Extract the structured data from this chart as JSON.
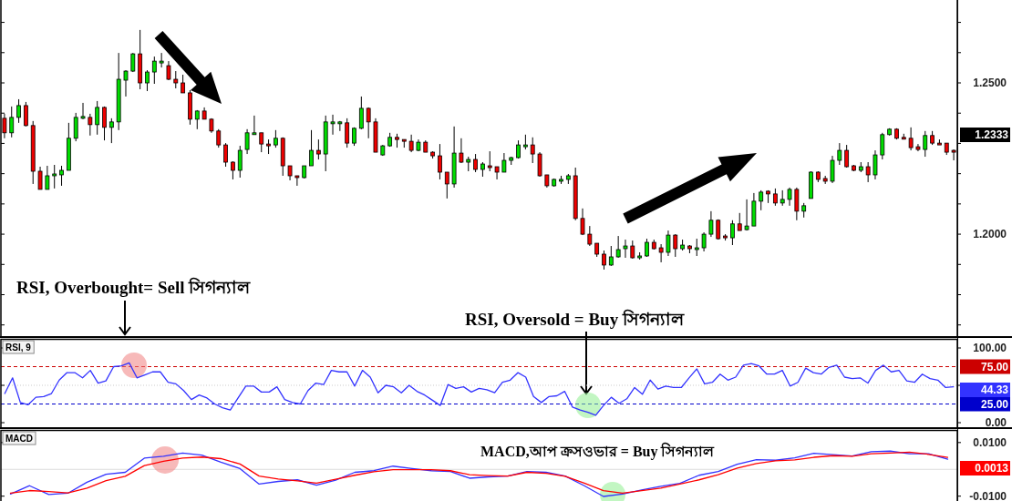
{
  "chart_data": [
    {
      "type": "candlestick",
      "categories": [
        null,
        null,
        null,
        null,
        null,
        null,
        null,
        null,
        null,
        null,
        null,
        null,
        null,
        null,
        null,
        null,
        null,
        null,
        null,
        null,
        null,
        null,
        null,
        null,
        null,
        null,
        null,
        null,
        null,
        null,
        null,
        null,
        null,
        null,
        null,
        null,
        null,
        null,
        null,
        null,
        null,
        null,
        null,
        null,
        null,
        null,
        null,
        null,
        null,
        null,
        null,
        null,
        null,
        null,
        null,
        null,
        null,
        null,
        null,
        null,
        null,
        null,
        null,
        null,
        null,
        null,
        null,
        null,
        null,
        null,
        null,
        null,
        null,
        null,
        null,
        null,
        null,
        null,
        null,
        null,
        null,
        null,
        null,
        null,
        null,
        null,
        null,
        null,
        null,
        null,
        null,
        null,
        null,
        null,
        null,
        null,
        null,
        null,
        null,
        null,
        null,
        null,
        null,
        null,
        null,
        null,
        null,
        null,
        null,
        null,
        null,
        null,
        null,
        null,
        null,
        null,
        null,
        null,
        null,
        null,
        null,
        null,
        null,
        null,
        null,
        null,
        null,
        null,
        null,
        null,
        null,
        null,
        null,
        null
      ],
      "ohlc": [
        [
          1.2383,
          1.2398,
          1.2317,
          1.2335
        ],
        [
          1.2335,
          1.2422,
          1.232,
          1.2386
        ],
        [
          1.2386,
          1.2446,
          1.2368,
          1.2425
        ],
        [
          1.2425,
          1.2437,
          1.2356,
          1.2359
        ],
        [
          1.2359,
          1.2374,
          1.2166,
          1.2208
        ],
        [
          1.2208,
          1.2223,
          1.2148,
          1.2148
        ],
        [
          1.2148,
          1.2226,
          1.2148,
          1.2193
        ],
        [
          1.2193,
          1.2229,
          1.2151,
          1.2199
        ],
        [
          1.2196,
          1.2226,
          1.216,
          1.2211
        ],
        [
          1.2211,
          1.2368,
          1.2211,
          1.2317
        ],
        [
          1.2317,
          1.2401,
          1.2307,
          1.2386
        ],
        [
          1.2383,
          1.2434,
          1.238,
          1.2389
        ],
        [
          1.2386,
          1.2398,
          1.2326,
          1.2362
        ],
        [
          1.2362,
          1.244,
          1.2329,
          1.2419
        ],
        [
          1.2419,
          1.2422,
          1.231,
          1.2353
        ],
        [
          1.2353,
          1.2383,
          1.2301,
          1.2371
        ],
        [
          1.2371,
          1.2599,
          1.2344,
          1.2512
        ],
        [
          1.2509,
          1.2542,
          1.2455,
          1.2539
        ],
        [
          1.2539,
          1.2599,
          1.2536,
          1.2596
        ],
        [
          1.2596,
          1.2675,
          1.2479,
          1.25
        ],
        [
          1.25,
          1.2542,
          1.2473,
          1.2536
        ],
        [
          1.2536,
          1.2587,
          1.2497,
          1.2572
        ],
        [
          1.2569,
          1.2599,
          1.2551,
          1.2572
        ],
        [
          1.2557,
          1.2572,
          1.2509,
          1.2512
        ],
        [
          1.2512,
          1.2539,
          1.2482,
          1.25
        ],
        [
          1.25,
          1.2527,
          1.2467,
          1.2467
        ],
        [
          1.2467,
          1.2476,
          1.2362,
          1.238
        ],
        [
          1.238,
          1.241,
          1.2347,
          1.2407
        ],
        [
          1.2407,
          1.2419,
          1.238,
          1.238
        ],
        [
          1.238,
          1.2383,
          1.2335,
          1.2341
        ],
        [
          1.2341,
          1.2347,
          1.2286,
          1.2295
        ],
        [
          1.2295,
          1.2301,
          1.2223,
          1.2238
        ],
        [
          1.2238,
          1.2241,
          1.2181,
          1.2211
        ],
        [
          1.2211,
          1.2292,
          1.2187,
          1.2277
        ],
        [
          1.228,
          1.2347,
          1.2265,
          1.2335
        ],
        [
          1.2332,
          1.2392,
          1.2329,
          1.2335
        ],
        [
          1.2335,
          1.2335,
          1.2271,
          1.2298
        ],
        [
          1.2298,
          1.2313,
          1.2265,
          1.2295
        ],
        [
          1.2295,
          1.2344,
          1.2286,
          1.2317
        ],
        [
          1.2317,
          1.232,
          1.2193,
          1.2226
        ],
        [
          1.2226,
          1.2226,
          1.2178,
          1.2193
        ],
        [
          1.2193,
          1.2193,
          1.216,
          1.2187
        ],
        [
          1.2187,
          1.2226,
          1.2184,
          1.2226
        ],
        [
          1.2226,
          1.2344,
          1.2226,
          1.2277
        ],
        [
          1.2277,
          1.2313,
          1.2247,
          1.2265
        ],
        [
          1.2265,
          1.2392,
          1.2208,
          1.2371
        ],
        [
          1.2365,
          1.2395,
          1.2329,
          1.2371
        ],
        [
          1.2365,
          1.2374,
          1.2341,
          1.2371
        ],
        [
          1.2368,
          1.2383,
          1.2286,
          1.2301
        ],
        [
          1.2301,
          1.2353,
          1.2292,
          1.235
        ],
        [
          1.235,
          1.2455,
          1.2347,
          1.2416
        ],
        [
          1.2416,
          1.2419,
          1.2317,
          1.2371
        ],
        [
          1.2371,
          1.2383,
          1.2271,
          1.2271
        ],
        [
          1.2262,
          1.2295,
          1.2259,
          1.2292
        ],
        [
          1.2292,
          1.2335,
          1.2289,
          1.232
        ],
        [
          1.232,
          1.2332,
          1.2286,
          1.2313
        ],
        [
          1.2313,
          1.2313,
          1.2286,
          1.231
        ],
        [
          1.2307,
          1.2329,
          1.2271,
          1.2277
        ],
        [
          1.2277,
          1.2313,
          1.2274,
          1.2304
        ],
        [
          1.2304,
          1.231,
          1.2271,
          1.2271
        ],
        [
          1.2271,
          1.2274,
          1.225,
          1.2259
        ],
        [
          1.2259,
          1.2298,
          1.2181,
          1.2205
        ],
        [
          1.2205,
          1.2205,
          1.2118,
          1.2166
        ],
        [
          1.2166,
          1.2356,
          1.2154,
          1.2268
        ],
        [
          1.2268,
          1.2317,
          1.2235,
          1.2238
        ],
        [
          1.2238,
          1.2256,
          1.2208,
          1.2247
        ],
        [
          1.2247,
          1.2265,
          1.2205,
          1.2214
        ],
        [
          1.2214,
          1.2238,
          1.219,
          1.2232
        ],
        [
          1.2226,
          1.2274,
          1.2208,
          1.2223
        ],
        [
          1.2223,
          1.2223,
          1.2181,
          1.2205
        ],
        [
          1.2205,
          1.2268,
          1.2205,
          1.2244
        ],
        [
          1.2244,
          1.2256,
          1.2229,
          1.2253
        ],
        [
          1.2253,
          1.231,
          1.225,
          1.2295
        ],
        [
          1.2292,
          1.2329,
          1.228,
          1.2295
        ],
        [
          1.2295,
          1.232,
          1.2235,
          1.2265
        ],
        [
          1.2265,
          1.2271,
          1.219,
          1.2193
        ],
        [
          1.2196,
          1.2196,
          1.2154,
          1.216
        ],
        [
          1.216,
          1.2184,
          1.2157,
          1.2181
        ],
        [
          1.2178,
          1.2193,
          1.2166,
          1.2181
        ],
        [
          1.2181,
          1.2199,
          1.2166,
          1.2193
        ],
        [
          1.2193,
          1.222,
          1.2046,
          1.2052
        ],
        [
          1.2052,
          1.2085,
          1.1997,
          1.2
        ],
        [
          1.2,
          1.2027,
          1.1961,
          1.1967
        ],
        [
          1.197,
          1.197,
          1.1925,
          1.1934
        ],
        [
          1.1934,
          1.1946,
          1.1883,
          1.1898
        ],
        [
          1.1898,
          1.1961,
          1.1895,
          1.1925
        ],
        [
          1.1925,
          1.1994,
          1.1922,
          1.1949
        ],
        [
          1.1952,
          1.1982,
          1.1922,
          1.1961
        ],
        [
          1.1961,
          1.1979,
          1.1919,
          1.1922
        ],
        [
          1.1922,
          1.194,
          1.1916,
          1.1928
        ],
        [
          1.1928,
          1.1985,
          1.1925,
          1.1973
        ],
        [
          1.1973,
          1.1982,
          1.1949,
          1.1952
        ],
        [
          1.1955,
          1.1967,
          1.1907,
          1.194
        ],
        [
          1.194,
          1.2012,
          1.1928,
          1.1997
        ],
        [
          1.1997,
          1.2,
          1.1925,
          1.1952
        ],
        [
          1.1952,
          1.1982,
          1.1946,
          1.1964
        ],
        [
          1.1961,
          1.1964,
          1.1937,
          1.1952
        ],
        [
          1.1952,
          1.1985,
          1.1928,
          1.1955
        ],
        [
          1.1955,
          1.2006,
          1.1943,
          1.2
        ],
        [
          1.2,
          1.2076,
          1.1991,
          1.2046
        ],
        [
          1.2046,
          1.2049,
          1.1982,
          1.1985
        ],
        [
          1.1994,
          1.2,
          1.1979,
          1.1991
        ],
        [
          1.1988,
          1.2046,
          1.1964,
          1.2034
        ],
        [
          1.2034,
          1.207,
          1.2012,
          1.2012
        ],
        [
          1.2015,
          1.2115,
          1.2012,
          1.2027
        ],
        [
          1.2027,
          1.2136,
          1.2027,
          1.2109
        ],
        [
          1.2109,
          1.2145,
          1.2079,
          1.2139
        ],
        [
          1.2142,
          1.2145,
          1.2103,
          1.2133
        ],
        [
          1.2133,
          1.2151,
          1.2094,
          1.2103
        ],
        [
          1.2103,
          1.2145,
          1.2094,
          1.2115
        ],
        [
          1.2115,
          1.2154,
          1.2094,
          1.2148
        ],
        [
          1.2148,
          1.2154,
          1.2046,
          1.2076
        ],
        [
          1.2076,
          1.2103,
          1.2055,
          1.2094
        ],
        [
          1.2118,
          1.2208,
          1.2118,
          1.2205
        ],
        [
          1.2205,
          1.2208,
          1.2172,
          1.2181
        ],
        [
          1.2184,
          1.2193,
          1.2166,
          1.2175
        ],
        [
          1.2175,
          1.2259,
          1.2169,
          1.2244
        ],
        [
          1.2244,
          1.2301,
          1.2229,
          1.2277
        ],
        [
          1.2277,
          1.2295,
          1.222,
          1.2223
        ],
        [
          1.2226,
          1.2229,
          1.2208,
          1.2211
        ],
        [
          1.2211,
          1.2238,
          1.2205,
          1.2223
        ],
        [
          1.2223,
          1.2238,
          1.2172,
          1.2196
        ],
        [
          1.2196,
          1.2277,
          1.2181,
          1.2262
        ],
        [
          1.2262,
          1.2335,
          1.2247,
          1.2329
        ],
        [
          1.2329,
          1.235,
          1.2326,
          1.2347
        ],
        [
          1.2347,
          1.235,
          1.2313,
          1.2317
        ],
        [
          1.232,
          1.2332,
          1.2313,
          1.2317
        ],
        [
          1.2317,
          1.2353,
          1.2277,
          1.2286
        ],
        [
          1.2289,
          1.2298,
          1.2274,
          1.228
        ],
        [
          1.228,
          1.2341,
          1.2256,
          1.2326
        ],
        [
          1.2326,
          1.2341,
          1.2295,
          1.2301
        ],
        [
          1.2301,
          1.2313,
          1.2298,
          1.2298
        ],
        [
          1.2301,
          1.2301,
          1.2262,
          1.2271
        ],
        [
          1.2277,
          1.228,
          1.2244,
          1.2274
        ]
      ],
      "ylim": [
        1.166,
        1.2774
      ],
      "yticks": [
        {
          "value": 1.17,
          "label": null
        },
        {
          "value": 1.18,
          "label": null
        },
        {
          "value": 1.19,
          "label": null
        },
        {
          "value": 1.2,
          "label": "1.2000"
        },
        {
          "value": 1.21,
          "label": null
        },
        {
          "value": 1.22,
          "label": null
        },
        {
          "value": 1.23,
          "label": null
        },
        {
          "value": 1.24,
          "label": null
        },
        {
          "value": 1.25,
          "label": "1.2500"
        },
        {
          "value": 1.26,
          "label": null
        },
        {
          "value": 1.27,
          "label": null
        }
      ],
      "annotations": [
        "RSI, Overbought= Sell সিগন্যাল",
        "RSI, Oversold = Buy সিগন্যাল",
        "1.2333"
      ]
    },
    {
      "type": "line",
      "title": "RSI, 9",
      "categories": [
        null,
        null,
        null,
        null,
        null,
        null,
        null,
        null,
        null,
        null,
        null,
        null,
        null,
        null,
        null,
        null,
        null,
        null,
        null,
        null,
        null,
        null,
        null,
        null,
        null,
        null,
        null,
        null,
        null,
        null,
        null,
        null,
        null,
        null,
        null,
        null,
        null,
        null,
        null,
        null,
        null,
        null,
        null,
        null,
        null,
        null,
        null,
        null,
        null,
        null,
        null,
        null,
        null,
        null,
        null,
        null,
        null,
        null,
        null,
        null,
        null,
        null,
        null,
        null,
        null,
        null,
        null,
        null,
        null,
        null,
        null,
        null,
        null,
        null,
        null,
        null,
        null,
        null,
        null,
        null,
        null,
        null,
        null,
        null,
        null,
        null,
        null,
        null,
        null,
        null,
        null,
        null,
        null,
        null,
        null,
        null,
        null,
        null,
        null,
        null,
        null,
        null,
        null,
        null,
        null,
        null,
        null,
        null,
        null,
        null,
        null,
        null,
        null,
        null,
        null,
        null,
        null,
        null,
        null,
        null,
        null,
        null,
        null
      ],
      "series": [
        {
          "color": "#3333ff",
          "values": [
            39,
            60,
            27,
            24,
            34,
            35,
            39,
            57,
            67,
            67,
            60,
            70,
            53,
            56,
            75,
            76,
            80,
            60,
            64,
            68,
            68,
            54,
            52,
            43,
            31,
            37,
            33,
            25,
            20,
            17,
            33,
            49,
            49,
            41,
            41,
            48,
            31,
            27,
            25,
            43,
            53,
            51,
            70,
            68,
            68,
            49,
            70,
            61,
            40,
            50,
            48,
            40,
            50,
            42,
            37,
            30,
            23,
            51,
            46,
            48,
            41,
            46,
            44,
            40,
            54,
            57,
            67,
            61,
            35,
            27,
            35,
            36,
            42,
            21,
            17,
            14,
            10,
            23,
            34,
            26,
            32,
            47,
            38,
            57,
            45,
            49,
            47,
            47,
            60,
            72,
            52,
            54,
            65,
            57,
            61,
            77,
            79,
            76,
            65,
            65,
            70,
            49,
            54,
            73,
            67,
            65,
            74,
            77,
            61,
            59,
            60,
            53,
            70,
            77,
            68,
            70,
            56,
            54,
            65,
            59,
            57,
            47,
            48
          ]
        }
      ],
      "ylim": [
        -7.3,
        112.2
      ],
      "yticks": [
        {
          "value": 0,
          "label": "0.00"
        },
        {
          "value": 50,
          "label": null
        },
        {
          "value": 100,
          "label": "100.00"
        }
      ],
      "ref_lines": [
        {
          "axis": "y",
          "value": 75,
          "label": "75.00",
          "color": "#cc0000",
          "line_style": "dashed"
        },
        {
          "axis": "y",
          "value": 50,
          "color": "#cccccc",
          "line_style": "dotted"
        },
        {
          "axis": "y",
          "value": 25,
          "label": "25.00",
          "color": "#0000cc",
          "line_style": "dashed"
        }
      ],
      "annotations": [
        "44.33"
      ]
    },
    {
      "type": "line",
      "title": "MACD",
      "categories": [
        null,
        null,
        null,
        null,
        null,
        null,
        null,
        null,
        null,
        null,
        null,
        null,
        null,
        null,
        null,
        null,
        null,
        null,
        null,
        null,
        null,
        null,
        null,
        null,
        null,
        null,
        null,
        null,
        null,
        null,
        null,
        null,
        null,
        null,
        null,
        null,
        null,
        null,
        null,
        null,
        null,
        null,
        null,
        null,
        null,
        null,
        null,
        null,
        null,
        null
      ],
      "series": [
        {
          "color": "#3333ff",
          "values": [
            -0.0092,
            -0.0061,
            -0.0094,
            -0.0089,
            -0.0048,
            -0.0018,
            -0.0011,
            0.0042,
            0.0049,
            0.0061,
            0.0053,
            0.0027,
            0.0003,
            -0.0055,
            -0.0045,
            -0.0039,
            -0.0059,
            -0.004,
            -0.0011,
            -0.0005,
            0.0012,
            0.0003,
            -0.0005,
            -0.0008,
            -0.0033,
            -0.0028,
            -0.0025,
            -0.0008,
            -0.0011,
            -0.0025,
            -0.0061,
            -0.0101,
            -0.0092,
            -0.0077,
            -0.0063,
            -0.0052,
            -0.0022,
            -0.0008,
            0.0019,
            0.0036,
            0.0034,
            0.0043,
            0.006,
            0.0055,
            0.005,
            0.0066,
            0.0068,
            0.0058,
            0.0058,
            0.0038
          ]
        },
        {
          "color": "#ff0000",
          "values": [
            -0.0089,
            -0.0079,
            -0.0083,
            -0.0088,
            -0.007,
            -0.0042,
            -0.0026,
            0.0014,
            0.003,
            0.0042,
            0.0046,
            0.004,
            0.002,
            -0.0025,
            -0.0036,
            -0.0043,
            -0.0051,
            -0.0037,
            -0.0022,
            -0.0009,
            -0.0001,
            -0.0001,
            -0.0001,
            -0.0005,
            -0.002,
            -0.0023,
            -0.0025,
            -0.0011,
            -0.0015,
            -0.0026,
            -0.0051,
            -0.0079,
            -0.0089,
            -0.0079,
            -0.007,
            -0.0055,
            -0.0039,
            -0.002,
            0.0005,
            0.0022,
            0.0032,
            0.0035,
            0.0045,
            0.0051,
            0.0049,
            0.0058,
            0.0061,
            0.0064,
            0.0056,
            0.0045
          ]
        }
      ],
      "ylim": [
        -0.0118,
        0.0147
      ],
      "yticks": [
        {
          "value": -0.01,
          "label": "-0.0100"
        },
        {
          "value": 0.01,
          "label": "0.0100"
        }
      ],
      "ref_lines": [
        {
          "axis": "y",
          "value": 0,
          "color": "#dddddd",
          "line_style": "solid"
        }
      ],
      "annotations": [
        "MACD,আপ ক্রসওভার = Buy সিগন্যাল",
        "0.0013"
      ]
    }
  ]
}
